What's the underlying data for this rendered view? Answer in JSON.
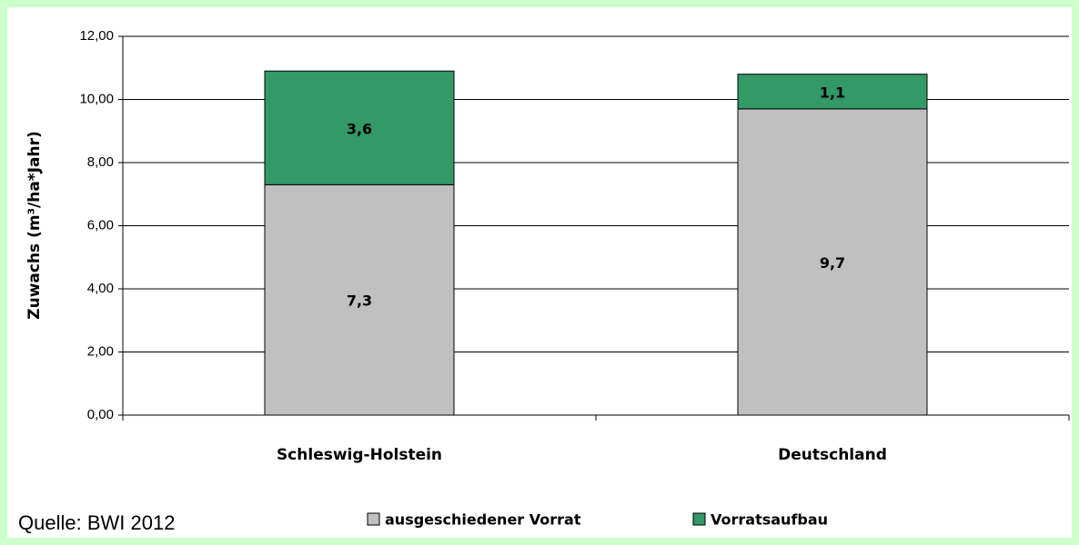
{
  "chart_data": {
    "type": "bar",
    "stacked": true,
    "categories": [
      "Schleswig-Holstein",
      "Deutschland"
    ],
    "series": [
      {
        "name": "ausgeschiedener Vorrat",
        "color": "#c0c0c0",
        "values": [
          7.3,
          9.7
        ],
        "value_labels": [
          "7,3",
          "9,7"
        ]
      },
      {
        "name": "Vorratsaufbau",
        "color": "#339966",
        "values": [
          3.6,
          1.1
        ],
        "value_labels": [
          "3,6",
          "1,1"
        ]
      }
    ],
    "ylim": [
      0,
      12
    ],
    "yticks": [
      {
        "value": 0,
        "label": "0,00"
      },
      {
        "value": 2,
        "label": "2,00"
      },
      {
        "value": 4,
        "label": "4,00"
      },
      {
        "value": 6,
        "label": "6,00"
      },
      {
        "value": 8,
        "label": "8,00"
      },
      {
        "value": 10,
        "label": "10,00"
      },
      {
        "value": 12,
        "label": "12,00"
      }
    ],
    "y_label": "Zuwachs (m³/ha*Jahr)",
    "source": "Quelle: BWI 2012",
    "grid": true,
    "legend": "bottom"
  }
}
